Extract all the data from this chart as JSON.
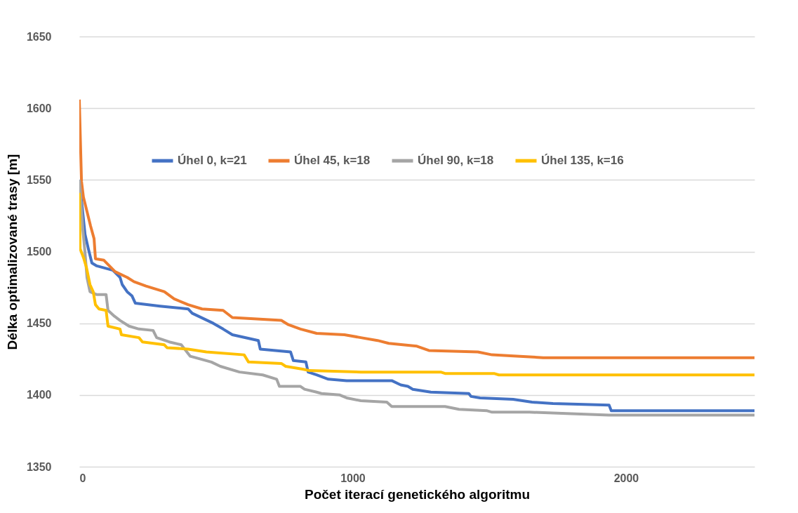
{
  "chart_data": {
    "type": "line",
    "xlabel": "Počet iterací genetického algoritmu",
    "ylabel": "Délka optimalizované trasy [m]",
    "xlim": [
      0,
      2470
    ],
    "xticks": [
      0,
      1000,
      2000
    ],
    "ylim": [
      1350,
      1650
    ],
    "yticks": [
      1350,
      1400,
      1450,
      1500,
      1550,
      1600,
      1650
    ],
    "grid": "y",
    "legend": "top",
    "series": [
      {
        "name": "Úhel 0, k=21",
        "color": "#4472c4",
        "x": [
          0,
          21,
          33,
          46,
          64,
          123,
          149,
          157,
          175,
          193,
          205,
          295,
          398,
          413,
          490,
          526,
          560,
          655,
          662,
          773,
          783,
          829,
          837,
          868,
          911,
          978,
          1143,
          1176,
          1202,
          1220,
          1286,
          1425,
          1433,
          1466,
          1587,
          1656,
          1733,
          1938,
          1946,
          2470
        ],
        "values": [
          1550,
          1512,
          1502,
          1492,
          1490,
          1487,
          1482,
          1477,
          1472,
          1469,
          1464,
          1462,
          1460,
          1457,
          1450,
          1446,
          1442,
          1438,
          1432,
          1430,
          1424,
          1423,
          1416,
          1414,
          1411,
          1410,
          1410,
          1407,
          1406,
          1404,
          1402,
          1401,
          1399,
          1398,
          1397,
          1395,
          1394,
          1393,
          1389,
          1389
        ]
      },
      {
        "name": "Úhel 45, k=18",
        "color": "#ed7d31",
        "x": [
          0,
          8,
          15,
          28,
          41,
          54,
          59,
          90,
          105,
          131,
          175,
          200,
          244,
          311,
          347,
          398,
          449,
          526,
          560,
          739,
          765,
          809,
          868,
          970,
          1030,
          1091,
          1132,
          1235,
          1279,
          1458,
          1510,
          1612,
          1697,
          2470
        ],
        "values": [
          1606,
          1549,
          1538,
          1528,
          1518,
          1509,
          1495,
          1494,
          1491,
          1486,
          1482,
          1479,
          1476,
          1472,
          1467,
          1463,
          1460,
          1459,
          1454,
          1452,
          1449,
          1446,
          1443,
          1442,
          1440,
          1438,
          1436,
          1434,
          1431,
          1430,
          1428,
          1427,
          1426,
          1426
        ]
      },
      {
        "name": "Úhel 90, k=18",
        "color": "#a5a5a5",
        "x": [
          0,
          3,
          13,
          21,
          28,
          39,
          64,
          98,
          105,
          128,
          149,
          182,
          218,
          270,
          283,
          329,
          373,
          406,
          483,
          516,
          586,
          671,
          722,
          732,
          809,
          824,
          868,
          886,
          953,
          978,
          1030,
          1125,
          1143,
          1338,
          1389,
          1492,
          1510,
          1646,
          1800,
          1938,
          2470
        ],
        "values": [
          1550,
          1544,
          1515,
          1499,
          1482,
          1472,
          1470,
          1470,
          1459,
          1455,
          1452,
          1448,
          1446,
          1445,
          1440,
          1437,
          1435,
          1427,
          1423,
          1420,
          1416,
          1414,
          1411,
          1406,
          1406,
          1404,
          1402,
          1401,
          1400,
          1398,
          1396,
          1395,
          1392,
          1392,
          1390,
          1389,
          1388,
          1388,
          1387,
          1386,
          1386
        ]
      },
      {
        "name": "Úhel 135, k=16",
        "color": "#ffc000",
        "x": [
          0,
          3,
          15,
          26,
          39,
          51,
          59,
          72,
          98,
          105,
          149,
          154,
          218,
          231,
          311,
          321,
          398,
          465,
          603,
          619,
          739,
          755,
          817,
          842,
          1030,
          1322,
          1338,
          1517,
          1535,
          2470
        ],
        "values": [
          1541,
          1502,
          1496,
          1489,
          1477,
          1472,
          1463,
          1460,
          1459,
          1448,
          1446,
          1442,
          1440,
          1437,
          1435,
          1433,
          1432,
          1430,
          1428,
          1423,
          1422,
          1420,
          1418,
          1417,
          1416,
          1416,
          1415,
          1415,
          1414,
          1414
        ]
      }
    ]
  }
}
